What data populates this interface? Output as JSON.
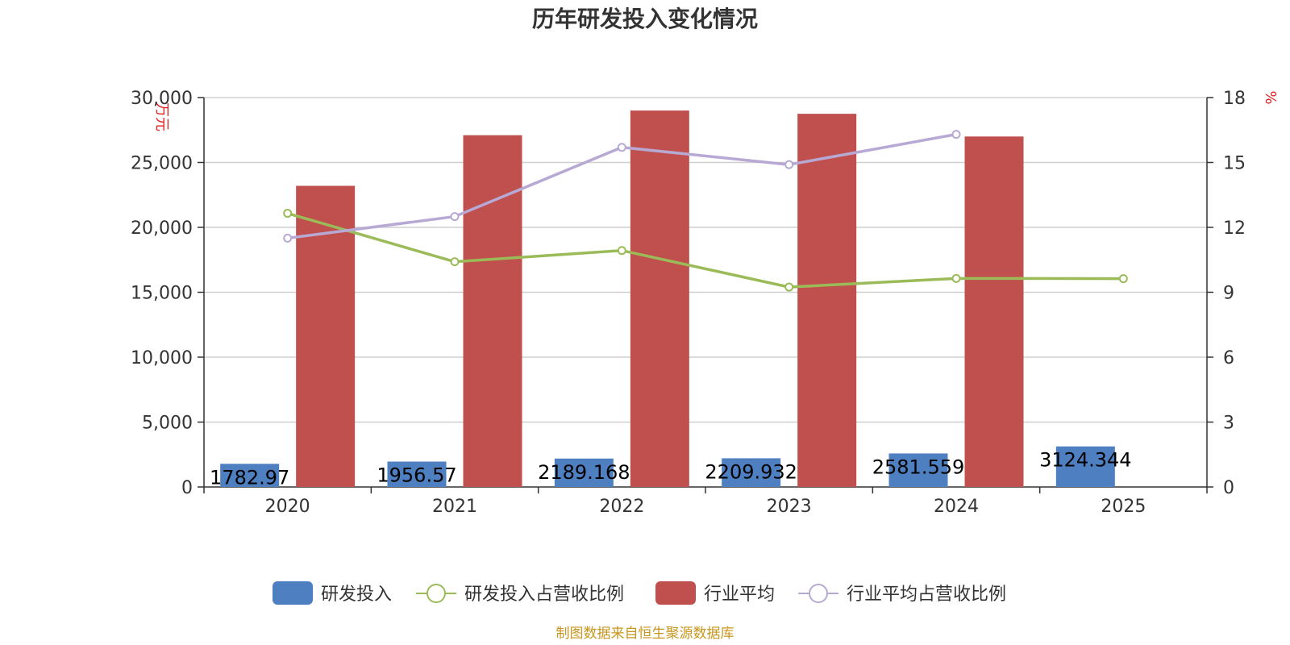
{
  "chart_data": {
    "type": "bar",
    "title": "历年研发投入变化情况",
    "categories": [
      "2020",
      "2021",
      "2022",
      "2023",
      "2024",
      "2025"
    ],
    "y_left": {
      "unit": "万元",
      "ylim": [
        0,
        30000
      ],
      "ticks": [
        0,
        5000,
        10000,
        15000,
        20000,
        25000,
        30000
      ],
      "tick_labels": [
        "0",
        "5,000",
        "10,000",
        "15,000",
        "20,000",
        "25,000",
        "30,000"
      ]
    },
    "y_right": {
      "unit": "%",
      "ylim": [
        0,
        18
      ],
      "ticks": [
        0,
        3,
        6,
        9,
        12,
        15,
        18
      ],
      "tick_labels": [
        "0",
        "3",
        "6",
        "9",
        "12",
        "15",
        "18"
      ]
    },
    "grid": true,
    "legend_position": "bottom",
    "series": [
      {
        "name": "研发投入",
        "kind": "bar",
        "axis": "left",
        "color": "#4e7fc1",
        "values": [
          1782.97,
          1956.57,
          2189.168,
          2209.932,
          2581.559,
          3124.344
        ],
        "labels": [
          "1782.97",
          "1956.57",
          "2189.168",
          "2209.932",
          "2581.559",
          "3124.344"
        ]
      },
      {
        "name": "研发投入占营收比例",
        "kind": "line",
        "axis": "right",
        "color": "#9bbb59",
        "values": [
          12.65,
          10.41,
          10.93,
          9.24,
          9.64,
          9.63
        ]
      },
      {
        "name": "行业平均",
        "kind": "bar",
        "axis": "left",
        "color": "#c0504d",
        "values": [
          23200,
          27100,
          29000,
          28750,
          27000,
          null
        ]
      },
      {
        "name": "行业平均占营收比例",
        "kind": "line",
        "axis": "right",
        "color": "#b8a9d4",
        "values": [
          11.5,
          12.5,
          15.7,
          14.9,
          16.3,
          null
        ]
      }
    ],
    "source": "制图数据来自恒生聚源数据库"
  }
}
